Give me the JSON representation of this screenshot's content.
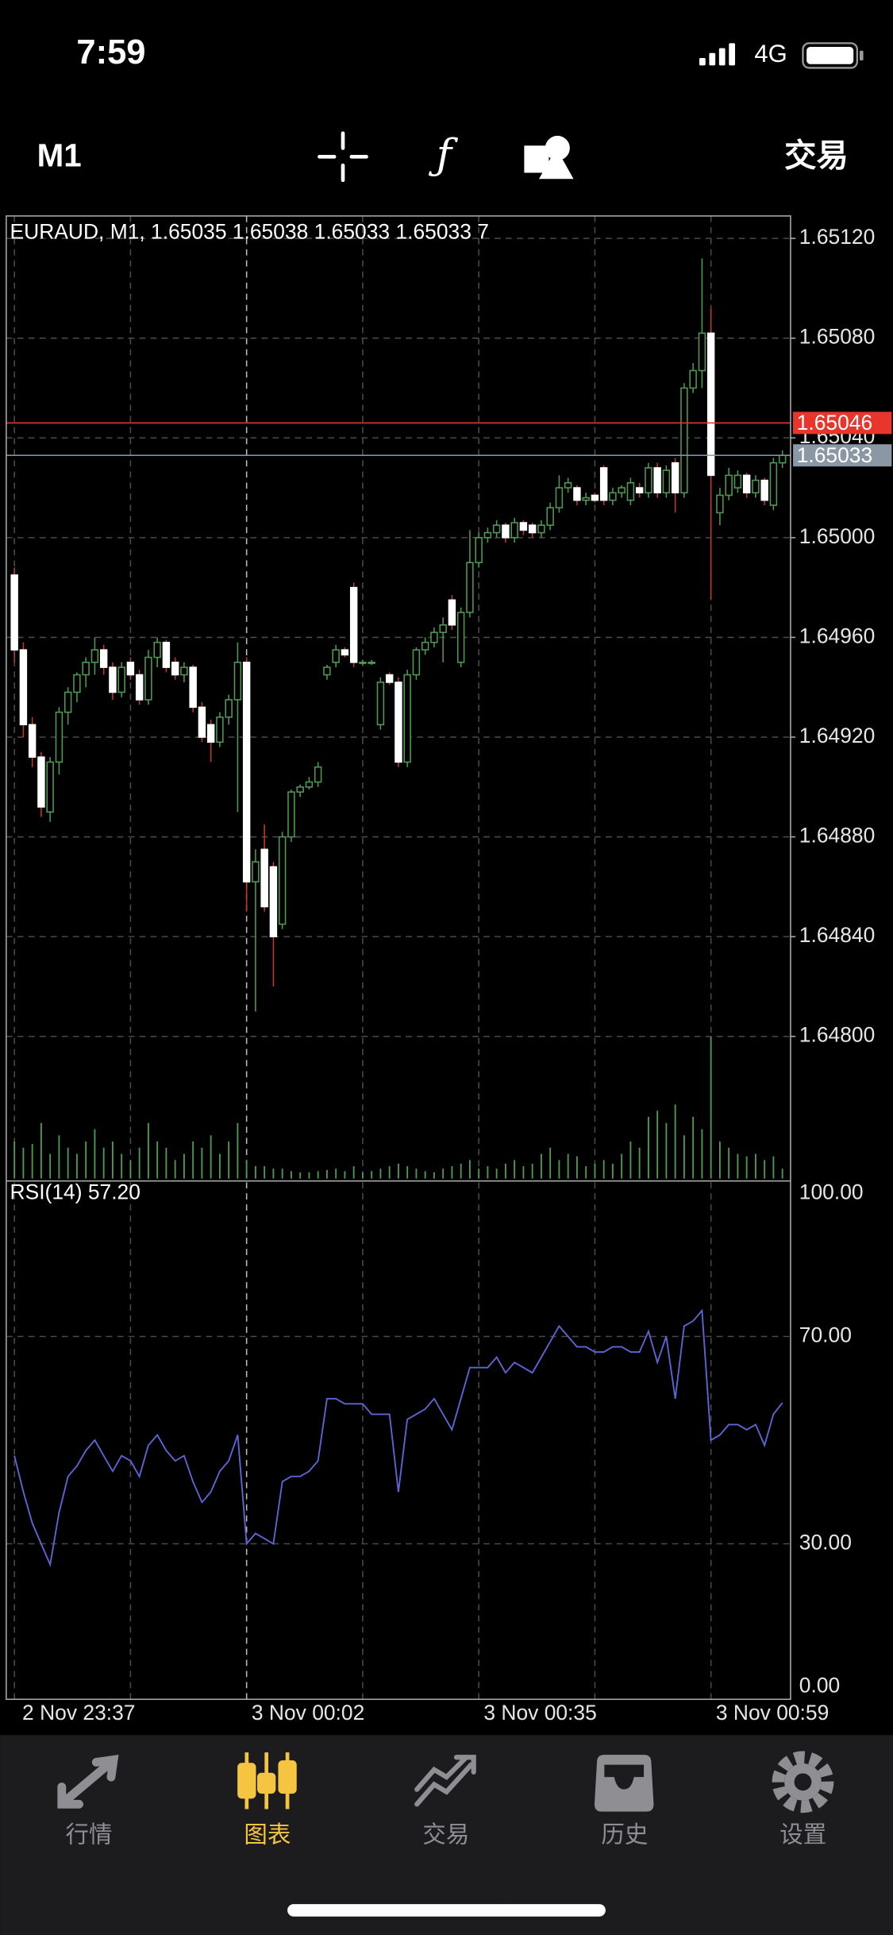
{
  "status_bar": {
    "time": "7:59",
    "network": "4G"
  },
  "toolbar": {
    "timeframe": "M1",
    "trade": "交易"
  },
  "chart_data": {
    "type": "candlestick",
    "title": "EURAUD, M1, 1.65035 1.65038 1.65033 1.65033 7",
    "open": [
      1.64985,
      1.64955,
      1.64925,
      1.64912,
      1.6489,
      1.6491,
      1.6493,
      1.64938,
      1.64945,
      1.6495,
      1.64955,
      1.64948,
      1.64938,
      1.6495,
      1.64945,
      1.64935,
      1.64952,
      1.64958,
      1.6495,
      1.64945,
      1.64948,
      1.64932,
      1.64925,
      1.64918,
      1.64928,
      1.64935,
      1.6495,
      1.64862,
      1.64875,
      1.64868,
      1.64845,
      1.6488,
      1.64898,
      1.649,
      1.64902,
      1.64945,
      1.6495,
      1.64955,
      1.6498,
      1.6495,
      1.6495,
      1.64925,
      1.64945,
      1.64942,
      1.6491,
      1.64945,
      1.64955,
      1.64958,
      1.64962,
      1.64975,
      1.6495,
      1.6497,
      1.6499,
      1.65,
      1.65002,
      1.65005,
      1.65,
      1.65006,
      1.65005,
      1.65002,
      1.65005,
      1.65012,
      1.6502,
      1.6502,
      1.65015,
      1.65017,
      1.65028,
      1.65015,
      1.65018,
      1.65015,
      1.6502,
      1.65018,
      1.65028,
      1.65018,
      1.6503,
      1.65018,
      1.6506,
      1.65067,
      1.65082,
      1.6501,
      1.65017,
      1.6502,
      1.65025,
      1.65018,
      1.65023,
      1.65013,
      1.6503
    ],
    "high": [
      1.64988,
      1.64958,
      1.64928,
      1.64914,
      1.64912,
      1.64932,
      1.6494,
      1.64946,
      1.64952,
      1.6496,
      1.64957,
      1.6495,
      1.6495,
      1.64952,
      1.64947,
      1.64955,
      1.6496,
      1.64959,
      1.64952,
      1.6495,
      1.64949,
      1.64934,
      1.64927,
      1.6493,
      1.64937,
      1.64958,
      1.64952,
      1.64875,
      1.64885,
      1.6487,
      1.64882,
      1.64899,
      1.64901,
      1.64904,
      1.6491,
      1.64949,
      1.64957,
      1.64956,
      1.64982,
      1.64951,
      1.64951,
      1.64944,
      1.64946,
      1.64944,
      1.64947,
      1.64956,
      1.6496,
      1.64964,
      1.64968,
      1.64977,
      1.64972,
      1.65003,
      1.65002,
      1.65004,
      1.65007,
      1.65006,
      1.65008,
      1.65007,
      1.65006,
      1.65007,
      1.65014,
      1.65025,
      1.65024,
      1.65021,
      1.65018,
      1.65018,
      1.65029,
      1.6502,
      1.65021,
      1.65024,
      1.65022,
      1.6503,
      1.6503,
      1.65029,
      1.65032,
      1.65062,
      1.6507,
      1.65112,
      1.65092,
      1.6502,
      1.65028,
      1.65027,
      1.65026,
      1.65025,
      1.65024,
      1.65032,
      1.65035
    ],
    "low": [
      1.6495,
      1.6492,
      1.64908,
      1.64888,
      1.64886,
      1.64905,
      1.64925,
      1.64934,
      1.6494,
      1.64945,
      1.64945,
      1.64935,
      1.64936,
      1.64943,
      1.64933,
      1.64933,
      1.64948,
      1.64946,
      1.64943,
      1.64942,
      1.6493,
      1.64918,
      1.6491,
      1.64916,
      1.64925,
      1.6489,
      1.6485,
      1.6481,
      1.6485,
      1.6482,
      1.64843,
      1.64878,
      1.64896,
      1.64899,
      1.649,
      1.64943,
      1.64948,
      1.64952,
      1.64948,
      1.64949,
      1.64949,
      1.64923,
      1.64941,
      1.64908,
      1.64908,
      1.64943,
      1.64953,
      1.64956,
      1.6495,
      1.64963,
      1.64948,
      1.64968,
      1.64988,
      1.64998,
      1.65,
      1.64998,
      1.64998,
      1.65001,
      1.65,
      1.65,
      1.65003,
      1.6501,
      1.65018,
      1.65013,
      1.65013,
      1.65014,
      1.65013,
      1.65013,
      1.65016,
      1.65013,
      1.65016,
      1.65016,
      1.65016,
      1.65016,
      1.6501,
      1.65016,
      1.65058,
      1.6506,
      1.64975,
      1.65005,
      1.65015,
      1.65018,
      1.65016,
      1.65016,
      1.65013,
      1.65011,
      1.65028
    ],
    "close": [
      1.64955,
      1.64925,
      1.64912,
      1.64892,
      1.6491,
      1.6493,
      1.64938,
      1.64945,
      1.6495,
      1.64955,
      1.64948,
      1.64938,
      1.64948,
      1.64945,
      1.64935,
      1.64952,
      1.64958,
      1.64948,
      1.64945,
      1.64948,
      1.64932,
      1.6492,
      1.64918,
      1.64928,
      1.64935,
      1.6495,
      1.64862,
      1.6487,
      1.64852,
      1.6484,
      1.6488,
      1.64898,
      1.649,
      1.64902,
      1.64908,
      1.64948,
      1.64955,
      1.64953,
      1.6495,
      1.6495,
      1.6495,
      1.64942,
      1.64942,
      1.6491,
      1.64945,
      1.64955,
      1.64958,
      1.64962,
      1.64965,
      1.64965,
      1.6497,
      1.6499,
      1.65,
      1.65002,
      1.65005,
      1.65,
      1.65006,
      1.65003,
      1.65002,
      1.65005,
      1.65012,
      1.6502,
      1.65022,
      1.65015,
      1.65016,
      1.65015,
      1.65015,
      1.65018,
      1.6502,
      1.65022,
      1.65018,
      1.65028,
      1.65018,
      1.65027,
      1.65018,
      1.6506,
      1.65067,
      1.65082,
      1.65025,
      1.65017,
      1.65025,
      1.65025,
      1.65018,
      1.65023,
      1.65015,
      1.6503,
      1.65033
    ],
    "volume": [
      30,
      25,
      28,
      45,
      20,
      35,
      25,
      20,
      30,
      40,
      25,
      30,
      20,
      15,
      25,
      45,
      30,
      25,
      15,
      20,
      30,
      25,
      35,
      20,
      30,
      45,
      15,
      10,
      10,
      8,
      8,
      6,
      5,
      5,
      6,
      7,
      8,
      6,
      10,
      5,
      6,
      8,
      10,
      12,
      10,
      8,
      6,
      5,
      8,
      10,
      12,
      15,
      8,
      10,
      8,
      12,
      15,
      10,
      12,
      20,
      25,
      15,
      20,
      18,
      10,
      12,
      15,
      12,
      20,
      30,
      25,
      50,
      55,
      45,
      60,
      35,
      50,
      40,
      115,
      30,
      25,
      20,
      18,
      20,
      15,
      18,
      8
    ],
    "ylim": [
      1.64743,
      1.65129
    ],
    "yticks": [
      {
        "value": 1.6512,
        "label": "1.65120"
      },
      {
        "value": 1.6508,
        "label": "1.65080"
      },
      {
        "value": 1.6504,
        "label": "1.65040"
      },
      {
        "value": 1.65,
        "label": "1.65000"
      },
      {
        "value": 1.6496,
        "label": "1.64960"
      },
      {
        "value": 1.6492,
        "label": "1.64920"
      },
      {
        "value": 1.6488,
        "label": "1.64880"
      },
      {
        "value": 1.6484,
        "label": "1.64840"
      },
      {
        "value": 1.648,
        "label": "1.64800"
      }
    ],
    "xlim": [
      -0.5,
      86.5
    ],
    "xticks": [
      {
        "value": 0,
        "label": "2 Nov 23:37"
      },
      {
        "value": 26,
        "label": "3 Nov 00:02"
      },
      {
        "value": 52,
        "label": "3 Nov 00:35"
      },
      {
        "value": 78,
        "label": "3 Nov 00:59"
      }
    ],
    "grid": true,
    "up_color": "#4f9a52",
    "down_color": "#ffffff",
    "down_wick_color": "#c0392b",
    "volume_color": "#4f9a52",
    "price_lines": [
      {
        "value": 1.65046,
        "color": "#e8362c"
      },
      {
        "value": 1.65033,
        "color": "#8a97a5"
      }
    ],
    "indicator": {
      "title": "RSI(14) 57.20",
      "values": [
        47,
        40,
        34,
        30,
        26,
        36,
        43,
        45,
        48,
        50,
        47,
        44,
        47,
        46,
        43,
        49,
        51,
        48,
        46,
        47,
        42,
        38,
        40,
        44,
        46,
        51,
        30,
        32,
        31,
        30,
        42,
        43,
        43,
        44,
        46,
        58,
        58,
        57,
        57,
        57,
        55,
        55,
        55,
        40,
        54,
        55,
        56,
        58,
        55,
        52,
        58,
        64,
        64,
        64,
        66,
        63,
        65,
        64,
        63,
        66,
        69,
        72,
        70,
        68,
        68,
        67,
        67,
        68,
        68,
        67,
        67,
        71,
        65,
        70,
        58,
        72,
        73,
        75,
        50,
        51,
        53,
        53,
        52,
        53,
        49,
        55,
        57.2
      ],
      "ylim": [
        0,
        100
      ],
      "yticks": [
        {
          "value": 100,
          "label": "100.00"
        },
        {
          "value": 70,
          "label": "70.00"
        },
        {
          "value": 30,
          "label": "30.00"
        },
        {
          "value": 0,
          "label": "0.00"
        }
      ],
      "color": "#5c66d6"
    }
  },
  "tab_bar": {
    "tabs": [
      "行情",
      "图表",
      "交易",
      "历史",
      "设置"
    ],
    "active": 1
  }
}
